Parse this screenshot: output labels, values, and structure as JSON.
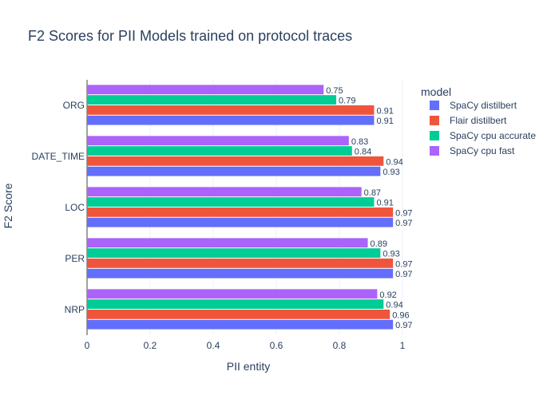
{
  "chart_data": {
    "type": "bar",
    "orientation": "horizontal",
    "title": "F2 Scores for PII Models trained on protocol traces",
    "xlabel": "PII entity",
    "ylabel": "F2 Score",
    "xlim": [
      0,
      1.0
    ],
    "x_ticks": [
      "0",
      "0.2",
      "0.4",
      "0.6",
      "0.8",
      "1"
    ],
    "categories": [
      "ORG",
      "DATE_TIME",
      "LOC",
      "PER",
      "NRP"
    ],
    "legend_title": "model",
    "legend_position": "top-right",
    "grid": true,
    "series": [
      {
        "name": "SpaCy distilbert",
        "color": "#636efa",
        "values": [
          0.91,
          0.93,
          0.97,
          0.97,
          0.97
        ],
        "labels": [
          "0.91",
          "0.93",
          "0.97",
          "0.97",
          "0.97"
        ]
      },
      {
        "name": "Flair distilbert",
        "color": "#ef553b",
        "values": [
          0.91,
          0.94,
          0.97,
          0.97,
          0.96
        ],
        "labels": [
          "0.91",
          "0.94",
          "0.97",
          "0.97",
          "0.96"
        ]
      },
      {
        "name": "SpaCy cpu accurate",
        "color": "#00cc96",
        "values": [
          0.79,
          0.84,
          0.91,
          0.93,
          0.94
        ],
        "labels": [
          "0.79",
          "0.84",
          "0.91",
          "0.93",
          "0.94"
        ]
      },
      {
        "name": "SpaCy cpu fast",
        "color": "#ab63fa",
        "values": [
          0.75,
          0.83,
          0.87,
          0.89,
          0.92
        ],
        "labels": [
          "0.75",
          "0.83",
          "0.87",
          "0.89",
          "0.92"
        ]
      }
    ]
  }
}
